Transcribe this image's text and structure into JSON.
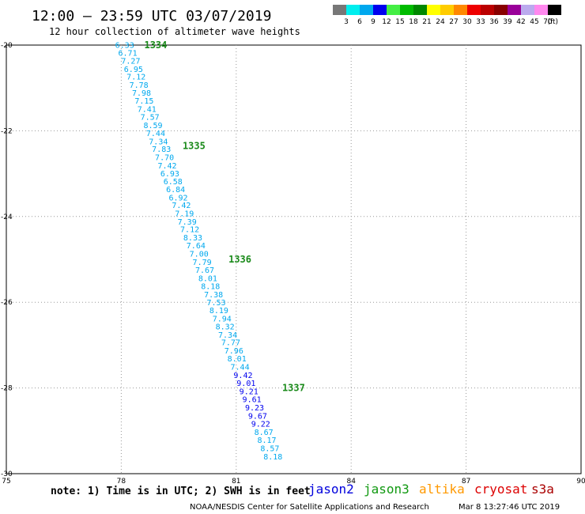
{
  "header": {
    "title": "12:00 — 23:59 UTC 03/07/2019",
    "subtitle": "12 hour collection of altimeter wave heights"
  },
  "legend": {
    "unit": "(ft)",
    "bins": [
      {
        "label": "3",
        "color": "#777777"
      },
      {
        "label": "6",
        "color": "#00eeee"
      },
      {
        "label": "9",
        "color": "#00a8ee"
      },
      {
        "label": "12",
        "color": "#0000ee"
      },
      {
        "label": "15",
        "color": "#44ee44"
      },
      {
        "label": "18",
        "color": "#00bb00"
      },
      {
        "label": "21",
        "color": "#008800"
      },
      {
        "label": "24",
        "color": "#ffff00"
      },
      {
        "label": "27",
        "color": "#ffcc00"
      },
      {
        "label": "30",
        "color": "#ff8800"
      },
      {
        "label": "33",
        "color": "#ee0000"
      },
      {
        "label": "36",
        "color": "#bb0000"
      },
      {
        "label": "39",
        "color": "#880000"
      },
      {
        "label": "42",
        "color": "#990099"
      },
      {
        "label": "45",
        "color": "#bbaaee"
      },
      {
        "label": "70",
        "color": "#ff88ee"
      },
      {
        "label": "",
        "color": "#000000"
      }
    ]
  },
  "axes": {
    "x_ticks": [
      "75",
      "78",
      "81",
      "84",
      "87",
      "90"
    ],
    "y_ticks": [
      "-20",
      "-22",
      "-24",
      "-26",
      "-28",
      "-30"
    ]
  },
  "note": "note: 1) Time is in UTC; 2) SWH is in feet",
  "satellites": [
    {
      "name": "jason2",
      "color": "#0000dd"
    },
    {
      "name": "jason3",
      "color": "#119911"
    },
    {
      "name": "altika",
      "color": "#ff9900"
    },
    {
      "name": "cryosat",
      "color": "#dd0000"
    },
    {
      "name": "s3a",
      "color": "#aa0000"
    }
  ],
  "footer": {
    "org": "NOAA/NESDIS Center for Satellite Applications and Research",
    "timestamp": "Mar  8 13:27:46 UTC 2019"
  },
  "chart_data": {
    "type": "scatter",
    "xlim": [
      75,
      90
    ],
    "ylim": [
      -30,
      -20
    ],
    "pass_labels": [
      {
        "text": "1334",
        "lon": 78.6,
        "lat": -20.0
      },
      {
        "text": "1335",
        "lon": 79.6,
        "lat": -22.35
      },
      {
        "text": "1336",
        "lon": 80.8,
        "lat": -25.0
      },
      {
        "text": "1337",
        "lon": 82.2,
        "lat": -28.0
      }
    ],
    "points": [
      {
        "v": "6.33",
        "lon": 77.84,
        "lat": -20.0,
        "c": "#00a8ee"
      },
      {
        "v": "6.71",
        "lon": 77.92,
        "lat": -20.18,
        "c": "#00a8ee"
      },
      {
        "v": "7.27",
        "lon": 78.0,
        "lat": -20.37,
        "c": "#00a8ee"
      },
      {
        "v": "6.95",
        "lon": 78.07,
        "lat": -20.56,
        "c": "#00a8ee"
      },
      {
        "v": "7.12",
        "lon": 78.14,
        "lat": -20.74,
        "c": "#00a8ee"
      },
      {
        "v": "7.78",
        "lon": 78.21,
        "lat": -20.93,
        "c": "#00a8ee"
      },
      {
        "v": "7.98",
        "lon": 78.28,
        "lat": -21.12,
        "c": "#00a8ee"
      },
      {
        "v": "7.15",
        "lon": 78.35,
        "lat": -21.3,
        "c": "#00a8ee"
      },
      {
        "v": "7.41",
        "lon": 78.42,
        "lat": -21.49,
        "c": "#00a8ee"
      },
      {
        "v": "7.57",
        "lon": 78.5,
        "lat": -21.68,
        "c": "#00a8ee"
      },
      {
        "v": "8.59",
        "lon": 78.58,
        "lat": -21.87,
        "c": "#00a8ee"
      },
      {
        "v": "7.44",
        "lon": 78.65,
        "lat": -22.06,
        "c": "#00a8ee"
      },
      {
        "v": "7.34",
        "lon": 78.72,
        "lat": -22.25,
        "c": "#00a8ee"
      },
      {
        "v": "7.83",
        "lon": 78.8,
        "lat": -22.43,
        "c": "#00a8ee"
      },
      {
        "v": "7.70",
        "lon": 78.88,
        "lat": -22.62,
        "c": "#00a8ee"
      },
      {
        "v": "7.42",
        "lon": 78.95,
        "lat": -22.81,
        "c": "#00a8ee"
      },
      {
        "v": "6.93",
        "lon": 79.02,
        "lat": -23.0,
        "c": "#00a8ee"
      },
      {
        "v": "6.58",
        "lon": 79.1,
        "lat": -23.18,
        "c": "#00a8ee"
      },
      {
        "v": "6.84",
        "lon": 79.17,
        "lat": -23.37,
        "c": "#00a8ee"
      },
      {
        "v": "6.92",
        "lon": 79.24,
        "lat": -23.56,
        "c": "#00a8ee"
      },
      {
        "v": "7.42",
        "lon": 79.32,
        "lat": -23.74,
        "c": "#00a8ee"
      },
      {
        "v": "7.19",
        "lon": 79.4,
        "lat": -23.93,
        "c": "#00a8ee"
      },
      {
        "v": "7.39",
        "lon": 79.47,
        "lat": -24.12,
        "c": "#00a8ee"
      },
      {
        "v": "7.12",
        "lon": 79.54,
        "lat": -24.3,
        "c": "#00a8ee"
      },
      {
        "v": "8.33",
        "lon": 79.62,
        "lat": -24.49,
        "c": "#00a8ee"
      },
      {
        "v": "7.64",
        "lon": 79.7,
        "lat": -24.68,
        "c": "#00a8ee"
      },
      {
        "v": "7.00",
        "lon": 79.78,
        "lat": -24.87,
        "c": "#00a8ee"
      },
      {
        "v": "7.79",
        "lon": 79.86,
        "lat": -25.06,
        "c": "#00a8ee"
      },
      {
        "v": "7.67",
        "lon": 79.93,
        "lat": -25.25,
        "c": "#00a8ee"
      },
      {
        "v": "8.01",
        "lon": 80.01,
        "lat": -25.44,
        "c": "#00a8ee"
      },
      {
        "v": "8.18",
        "lon": 80.08,
        "lat": -25.63,
        "c": "#00a8ee"
      },
      {
        "v": "7.38",
        "lon": 80.16,
        "lat": -25.82,
        "c": "#00a8ee"
      },
      {
        "v": "7.53",
        "lon": 80.23,
        "lat": -26.01,
        "c": "#00a8ee"
      },
      {
        "v": "8.19",
        "lon": 80.3,
        "lat": -26.19,
        "c": "#00a8ee"
      },
      {
        "v": "7.94",
        "lon": 80.38,
        "lat": -26.38,
        "c": "#00a8ee"
      },
      {
        "v": "8.32",
        "lon": 80.46,
        "lat": -26.57,
        "c": "#00a8ee"
      },
      {
        "v": "7.34",
        "lon": 80.53,
        "lat": -26.76,
        "c": "#00a8ee"
      },
      {
        "v": "7.77",
        "lon": 80.61,
        "lat": -26.94,
        "c": "#00a8ee"
      },
      {
        "v": "7.96",
        "lon": 80.69,
        "lat": -27.13,
        "c": "#00a8ee"
      },
      {
        "v": "8.01",
        "lon": 80.77,
        "lat": -27.32,
        "c": "#00a8ee"
      },
      {
        "v": "7.44",
        "lon": 80.85,
        "lat": -27.51,
        "c": "#00a8ee"
      },
      {
        "v": "9.42",
        "lon": 80.93,
        "lat": -27.7,
        "c": "#0000ee"
      },
      {
        "v": "9.01",
        "lon": 81.01,
        "lat": -27.89,
        "c": "#0000ee"
      },
      {
        "v": "9.21",
        "lon": 81.08,
        "lat": -28.08,
        "c": "#0000ee"
      },
      {
        "v": "9.61",
        "lon": 81.16,
        "lat": -28.27,
        "c": "#0000ee"
      },
      {
        "v": "9.23",
        "lon": 81.23,
        "lat": -28.46,
        "c": "#0000ee"
      },
      {
        "v": "9.67",
        "lon": 81.31,
        "lat": -28.65,
        "c": "#0000ee"
      },
      {
        "v": "9.22",
        "lon": 81.39,
        "lat": -28.84,
        "c": "#0000ee"
      },
      {
        "v": "8.67",
        "lon": 81.47,
        "lat": -29.03,
        "c": "#00a8ee"
      },
      {
        "v": "8.17",
        "lon": 81.55,
        "lat": -29.22,
        "c": "#00a8ee"
      },
      {
        "v": "8.57",
        "lon": 81.63,
        "lat": -29.41,
        "c": "#00a8ee"
      },
      {
        "v": "8.18",
        "lon": 81.71,
        "lat": -29.6,
        "c": "#00a8ee"
      }
    ]
  }
}
